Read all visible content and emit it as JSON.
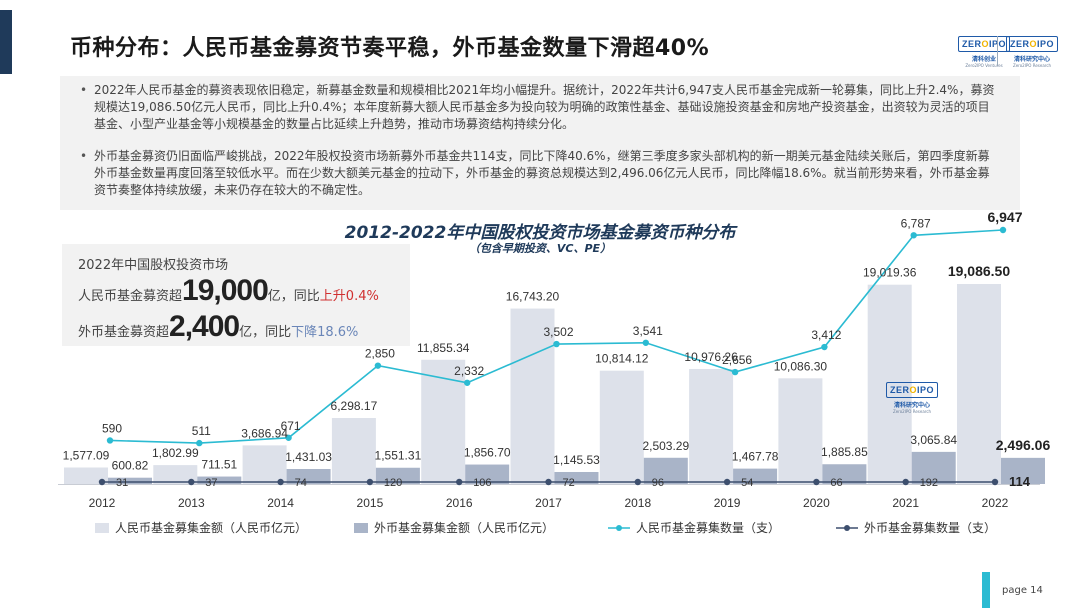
{
  "page": {
    "title": "币种分布：人民币基金募资节奏平稳，外币基金数量下滑超40%",
    "paragraphs": [
      "2022年人民币基金的募资表现依旧稳定，新募基金数量和规模相比2021年均小幅提升。据统计，2022年共计6,947支人民币基金完成新一轮募集，同比上升2.4%，募资规模达19,086.50亿元人民币，同比上升0.4%；本年度新募大额人民币基金多为投向较为明确的政策性基金、基础设施投资基金和房地产投资基金，出资较为灵活的项目基金、小型产业基金等小规模基金的数量占比延续上升趋势，推动市场募资结构持续分化。",
      "外币基金募资仍旧面临严峻挑战，2022年股权投资市场新募外币基金共114支，同比下降40.6%，继第三季度多家头部机构的新一期美元基金陆续关账后，第四季度新募外币基金数量再度回落至较低水平。而在少数大额美元基金的拉动下，外币基金的募资总规模达到2,496.06亿元人民币，同比降幅18.6%。就当前形势来看，外币基金募资节奏整体持续放缓，未来仍存在较大的不确定性。"
    ],
    "logo": {
      "badge_left": "ZER",
      "badge_o": "O",
      "badge_right": "IPO",
      "sub": "清科创业",
      "sub2": "Zero2IPO Ventures",
      "sub_right": "清科研究中心",
      "sub2_right": "Zero2IPO Research"
    },
    "summary": {
      "line1": "2022年中国股权投资市场",
      "rmb_prefix": "人民币基金募资超",
      "rmb_big": "19,000",
      "rmb_mid": "亿，同比",
      "rmb_change": "上升0.4%",
      "fx_prefix": "外币基金募资超",
      "fx_big": "2,400",
      "fx_mid": "亿，同比",
      "fx_change": "下降18.6%"
    },
    "watermark": {
      "badge_left": "ZER",
      "badge_o": "O",
      "badge_right": "IPO",
      "sub": "清科研究中心",
      "sub2": "Zero2IPO Research"
    },
    "page_label": "page  14"
  },
  "chart_data": {
    "type": "bar+line",
    "title": "2012-2022年中国股权投资市场基金募资币种分布",
    "subtitle": "（包含早期投资、VC、PE）",
    "categories": [
      "2012",
      "2013",
      "2014",
      "2015",
      "2016",
      "2017",
      "2018",
      "2019",
      "2020",
      "2021",
      "2022"
    ],
    "series": [
      {
        "name": "人民币基金募集金额（人民币亿元）",
        "kind": "bar",
        "color": "#dde1ea",
        "values": [
          1577.09,
          1802.99,
          3686.94,
          6298.17,
          11855.34,
          16743.2,
          10814.12,
          10976.26,
          10086.3,
          19019.36,
          19086.5
        ],
        "labels": [
          "1,577.09",
          "1,802.99",
          "3,686.94",
          "6,298.17",
          "11,855.34",
          "16,743.20",
          "10,814.12",
          "10,976.26",
          "10,086.30",
          "19,019.36",
          "19,086.50"
        ]
      },
      {
        "name": "外币基金募集金额（人民币亿元）",
        "kind": "bar",
        "color": "#a9b4c8",
        "values": [
          600.82,
          711.51,
          1431.03,
          1551.31,
          1856.7,
          1145.53,
          2503.29,
          1467.78,
          1885.85,
          3065.84,
          2496.06
        ],
        "labels": [
          "600.82",
          "711.51",
          "1,431.03",
          "1,551.31",
          "1,856.70",
          "1,145.53",
          "2,503.29",
          "1,467.78",
          "1,885.85",
          "3,065.84",
          "2,496.06"
        ]
      },
      {
        "name": "人民币基金募集数量（支）",
        "kind": "line",
        "color": "#2bbbd2",
        "values": [
          590,
          511,
          671,
          2850,
          2332,
          3502,
          3541,
          2656,
          3412,
          6787,
          6947
        ],
        "labels": [
          "590",
          "511",
          "671",
          "2,850",
          "2,332",
          "3,502",
          "3,541",
          "2,656",
          "3,412",
          "6,787",
          "6,947"
        ]
      },
      {
        "name": "外币基金募集数量（支）",
        "kind": "line",
        "color": "#3d4f6e",
        "values": [
          31,
          37,
          74,
          120,
          106,
          72,
          96,
          54,
          66,
          192,
          114
        ],
        "labels": [
          "31",
          "37",
          "74",
          "120",
          "106",
          "72",
          "96",
          "54",
          "66",
          "192",
          "114"
        ]
      }
    ],
    "legend_position": "bottom",
    "grid": false
  }
}
